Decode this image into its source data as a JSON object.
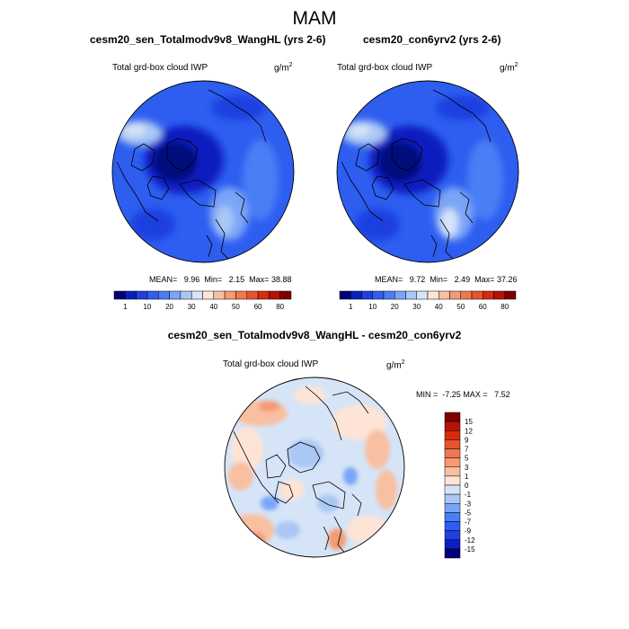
{
  "title": "MAM",
  "panels": [
    {
      "title": "cesm20_sen_Totalmodv9v8_WangHL (yrs 2-6)",
      "field": "Total grd-box cloud IWP",
      "units_base": "g/m",
      "units_exp": "2",
      "mean_label": "MEAN=",
      "mean": "9.96",
      "min_label": "Min=",
      "min": "2.15",
      "max_label": "Max=",
      "max": "38.88"
    },
    {
      "title": "cesm20_con6yrv2 (yrs 2-6)",
      "field": "Total grd-box cloud IWP",
      "units_base": "g/m",
      "units_exp": "2",
      "mean_label": "MEAN=",
      "mean": "9.72",
      "min_label": "Min=",
      "min": "2.49",
      "max_label": "Max=",
      "max": "37.26"
    }
  ],
  "diff_panel": {
    "title": "cesm20_sen_Totalmodv9v8_WangHL - cesm20_con6yrv2",
    "field": "Total grd-box cloud IWP",
    "units_base": "g/m",
    "units_exp": "2",
    "min_label": "MIN =",
    "min": "-7.25",
    "max_label": "MAX =",
    "max": "7.52"
  },
  "colorbar_abs": {
    "colors": [
      "#00007f",
      "#0a1fbf",
      "#1f3fe0",
      "#2d5ef0",
      "#4a7ef5",
      "#7aa5f7",
      "#aac7f5",
      "#d6e4f8",
      "#fde4d6",
      "#f8c0a0",
      "#f59a73",
      "#f07850",
      "#e8532c",
      "#d82a10",
      "#b51208",
      "#7f0000"
    ],
    "tick_labels": [
      "1",
      "10",
      "20",
      "30",
      "40",
      "50",
      "60",
      "80"
    ]
  },
  "colorbar_diff": {
    "colors": [
      "#7f0000",
      "#b51208",
      "#d82a10",
      "#e8532c",
      "#f07850",
      "#f59a73",
      "#f8c0a0",
      "#fde4d6",
      "#d6e4f8",
      "#aac7f5",
      "#7aa5f7",
      "#4a7ef5",
      "#2d5ef0",
      "#1f3fe0",
      "#0a1fbf",
      "#00007f"
    ],
    "tick_labels": [
      "15",
      "12",
      "9",
      "7",
      "5",
      "3",
      "1",
      "0",
      "-1",
      "-3",
      "-5",
      "-7",
      "-9",
      "-12",
      "-15"
    ]
  }
}
